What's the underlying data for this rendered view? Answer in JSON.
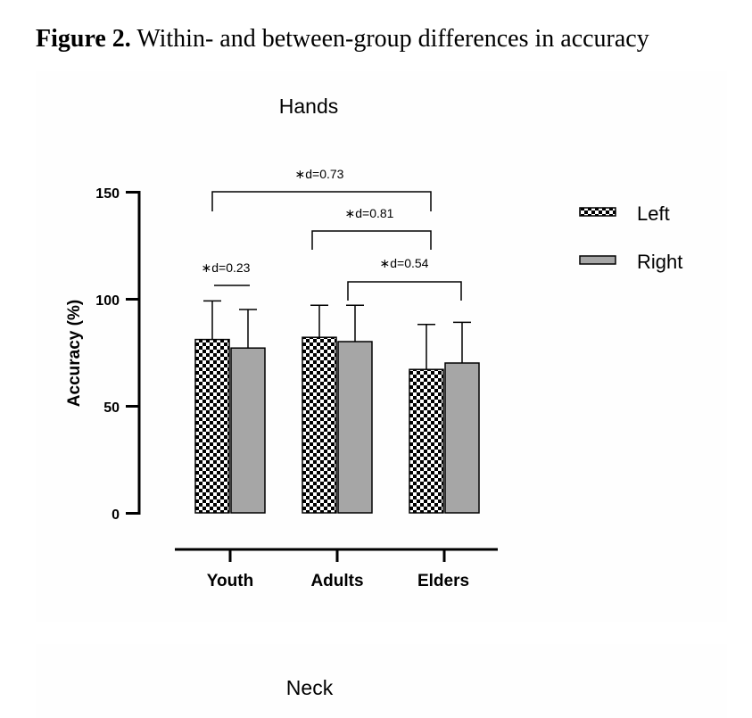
{
  "figure": {
    "label": "Figure 2.",
    "caption": "Within- and between-group differences in accuracy"
  },
  "chart_data": [
    {
      "type": "bar",
      "title": "Hands",
      "xlabel": "",
      "ylabel": "Accuracy (%)",
      "ylim": [
        0,
        150
      ],
      "yticks": [
        "0",
        "50",
        "100",
        "150"
      ],
      "categories": [
        "Youth",
        "Adults",
        "Elders"
      ],
      "series": [
        {
          "name": "Left",
          "pattern": "checkerboard",
          "values": [
            81,
            82,
            67
          ],
          "sd": [
            18,
            15,
            21
          ]
        },
        {
          "name": "Right",
          "color": "#a6a6a6",
          "values": [
            77,
            80,
            70
          ],
          "sd": [
            18,
            17,
            19
          ]
        }
      ],
      "annotations": [
        {
          "text": "∗d=0.23"
        },
        {
          "text": "∗d=0.73"
        },
        {
          "text": "∗d=0.81"
        },
        {
          "text": "∗d=0.54"
        }
      ],
      "legend_position": "top-right",
      "grid": false
    },
    {
      "type": "bar",
      "title": "Neck"
    }
  ]
}
